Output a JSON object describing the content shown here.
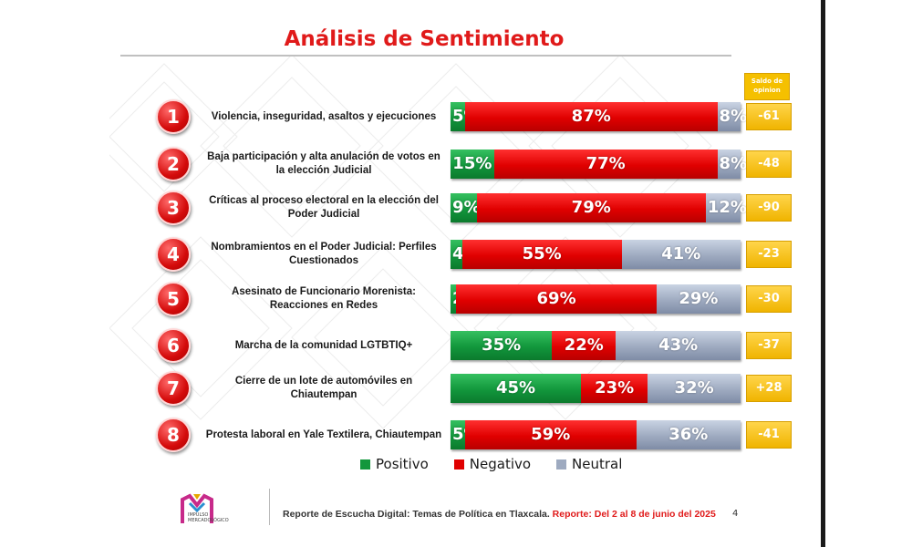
{
  "title": "Análisis de Sentimiento",
  "saldo_header": "Saldo de opinion",
  "colors": {
    "positive": "#12973c",
    "negative": "#e00000",
    "neutral": "#9eaac0",
    "saldo": "#f0b400",
    "title": "#e01a1a"
  },
  "chart_data": {
    "type": "bar",
    "stacked": "horizontal-100",
    "series": [
      {
        "name": "Positivo",
        "values": [
          5,
          15,
          9,
          4,
          2,
          35,
          45,
          5
        ]
      },
      {
        "name": "Negativo",
        "values": [
          87,
          77,
          79,
          55,
          69,
          22,
          23,
          59
        ]
      },
      {
        "name": "Neutral",
        "values": [
          8,
          8,
          12,
          41,
          29,
          43,
          32,
          36
        ]
      }
    ],
    "legend_position": "bottom-center",
    "rows": [
      {
        "num": "1",
        "topic": "Violencia, inseguridad, asaltos  y ejecuciones",
        "positive": 5,
        "negative": 87,
        "neutral": 8,
        "saldo": "-61"
      },
      {
        "num": "2",
        "topic": "Baja participación y alta anulación de votos en la elección Judicial",
        "positive": 15,
        "negative": 77,
        "neutral": 8,
        "saldo": "-48"
      },
      {
        "num": "3",
        "topic": "Críticas al proceso electoral en la elección del Poder Judicial",
        "positive": 9,
        "negative": 79,
        "neutral": 12,
        "saldo": "-90"
      },
      {
        "num": "4",
        "topic": "Nombramientos en el Poder Judicial: Perfiles Cuestionados",
        "positive": 4,
        "negative": 55,
        "neutral": 41,
        "saldo": "-23"
      },
      {
        "num": "5",
        "topic": "Asesinato de Funcionario Morenista: Reacciones en Redes",
        "positive": 2,
        "negative": 69,
        "neutral": 29,
        "saldo": "-30"
      },
      {
        "num": "6",
        "topic": "Marcha de la comunidad LGTBTIQ+",
        "positive": 35,
        "negative": 22,
        "neutral": 43,
        "saldo": "-37"
      },
      {
        "num": "7",
        "topic": "Cierre de un lote de automóviles en Chiautempan",
        "positive": 45,
        "negative": 23,
        "neutral": 32,
        "saldo": "+28"
      },
      {
        "num": "8",
        "topic": "Protesta laboral en Yale Textilera, Chiautempan",
        "positive": 5,
        "negative": 59,
        "neutral": 36,
        "saldo": "-41"
      }
    ]
  },
  "legend": {
    "positive": "Positivo",
    "negative": "Negativo",
    "neutral": "Neutral"
  },
  "logo": {
    "line1": "IMPULSO",
    "line2": "MERCADOLÓGICO"
  },
  "footer": {
    "text": "Reporte de Escucha Digital: Temas de Política en Tlaxcala.",
    "highlight": "Reporte: Del  2 al 8 de junio del 2025",
    "page": "4"
  }
}
